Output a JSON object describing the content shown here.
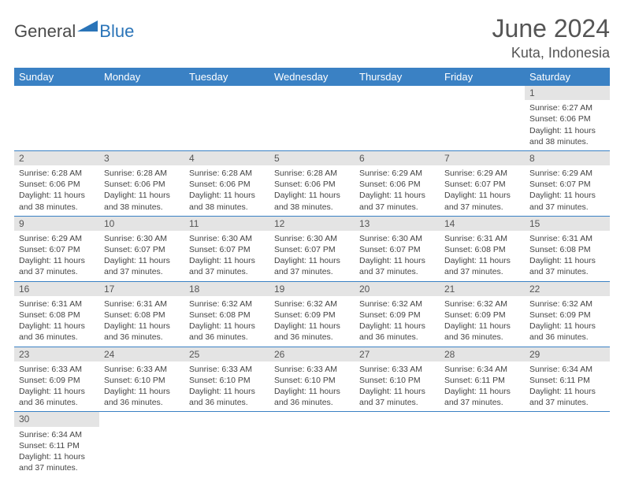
{
  "logo": {
    "word1": "General",
    "word2": "Blue",
    "color1": "#4a4a4a",
    "color2": "#2a74b8"
  },
  "title": "June 2024",
  "location": "Kuta, Indonesia",
  "colors": {
    "header_bg": "#3a81c4",
    "header_text": "#ffffff",
    "daynum_bg": "#e4e4e4",
    "rule": "#3a81c4",
    "text": "#444444",
    "page_bg": "#ffffff"
  },
  "typography": {
    "title_fontsize": 32,
    "location_fontsize": 18,
    "dayheader_fontsize": 13,
    "cell_fontsize": 10.5
  },
  "day_headers": [
    "Sunday",
    "Monday",
    "Tuesday",
    "Wednesday",
    "Thursday",
    "Friday",
    "Saturday"
  ],
  "weeks": [
    [
      null,
      null,
      null,
      null,
      null,
      null,
      {
        "n": "1",
        "sunrise": "6:27 AM",
        "sunset": "6:06 PM",
        "daylight": "11 hours and 38 minutes."
      }
    ],
    [
      {
        "n": "2",
        "sunrise": "6:28 AM",
        "sunset": "6:06 PM",
        "daylight": "11 hours and 38 minutes."
      },
      {
        "n": "3",
        "sunrise": "6:28 AM",
        "sunset": "6:06 PM",
        "daylight": "11 hours and 38 minutes."
      },
      {
        "n": "4",
        "sunrise": "6:28 AM",
        "sunset": "6:06 PM",
        "daylight": "11 hours and 38 minutes."
      },
      {
        "n": "5",
        "sunrise": "6:28 AM",
        "sunset": "6:06 PM",
        "daylight": "11 hours and 38 minutes."
      },
      {
        "n": "6",
        "sunrise": "6:29 AM",
        "sunset": "6:06 PM",
        "daylight": "11 hours and 37 minutes."
      },
      {
        "n": "7",
        "sunrise": "6:29 AM",
        "sunset": "6:07 PM",
        "daylight": "11 hours and 37 minutes."
      },
      {
        "n": "8",
        "sunrise": "6:29 AM",
        "sunset": "6:07 PM",
        "daylight": "11 hours and 37 minutes."
      }
    ],
    [
      {
        "n": "9",
        "sunrise": "6:29 AM",
        "sunset": "6:07 PM",
        "daylight": "11 hours and 37 minutes."
      },
      {
        "n": "10",
        "sunrise": "6:30 AM",
        "sunset": "6:07 PM",
        "daylight": "11 hours and 37 minutes."
      },
      {
        "n": "11",
        "sunrise": "6:30 AM",
        "sunset": "6:07 PM",
        "daylight": "11 hours and 37 minutes."
      },
      {
        "n": "12",
        "sunrise": "6:30 AM",
        "sunset": "6:07 PM",
        "daylight": "11 hours and 37 minutes."
      },
      {
        "n": "13",
        "sunrise": "6:30 AM",
        "sunset": "6:07 PM",
        "daylight": "11 hours and 37 minutes."
      },
      {
        "n": "14",
        "sunrise": "6:31 AM",
        "sunset": "6:08 PM",
        "daylight": "11 hours and 37 minutes."
      },
      {
        "n": "15",
        "sunrise": "6:31 AM",
        "sunset": "6:08 PM",
        "daylight": "11 hours and 37 minutes."
      }
    ],
    [
      {
        "n": "16",
        "sunrise": "6:31 AM",
        "sunset": "6:08 PM",
        "daylight": "11 hours and 36 minutes."
      },
      {
        "n": "17",
        "sunrise": "6:31 AM",
        "sunset": "6:08 PM",
        "daylight": "11 hours and 36 minutes."
      },
      {
        "n": "18",
        "sunrise": "6:32 AM",
        "sunset": "6:08 PM",
        "daylight": "11 hours and 36 minutes."
      },
      {
        "n": "19",
        "sunrise": "6:32 AM",
        "sunset": "6:09 PM",
        "daylight": "11 hours and 36 minutes."
      },
      {
        "n": "20",
        "sunrise": "6:32 AM",
        "sunset": "6:09 PM",
        "daylight": "11 hours and 36 minutes."
      },
      {
        "n": "21",
        "sunrise": "6:32 AM",
        "sunset": "6:09 PM",
        "daylight": "11 hours and 36 minutes."
      },
      {
        "n": "22",
        "sunrise": "6:32 AM",
        "sunset": "6:09 PM",
        "daylight": "11 hours and 36 minutes."
      }
    ],
    [
      {
        "n": "23",
        "sunrise": "6:33 AM",
        "sunset": "6:09 PM",
        "daylight": "11 hours and 36 minutes."
      },
      {
        "n": "24",
        "sunrise": "6:33 AM",
        "sunset": "6:10 PM",
        "daylight": "11 hours and 36 minutes."
      },
      {
        "n": "25",
        "sunrise": "6:33 AM",
        "sunset": "6:10 PM",
        "daylight": "11 hours and 36 minutes."
      },
      {
        "n": "26",
        "sunrise": "6:33 AM",
        "sunset": "6:10 PM",
        "daylight": "11 hours and 36 minutes."
      },
      {
        "n": "27",
        "sunrise": "6:33 AM",
        "sunset": "6:10 PM",
        "daylight": "11 hours and 37 minutes."
      },
      {
        "n": "28",
        "sunrise": "6:34 AM",
        "sunset": "6:11 PM",
        "daylight": "11 hours and 37 minutes."
      },
      {
        "n": "29",
        "sunrise": "6:34 AM",
        "sunset": "6:11 PM",
        "daylight": "11 hours and 37 minutes."
      }
    ],
    [
      {
        "n": "30",
        "sunrise": "6:34 AM",
        "sunset": "6:11 PM",
        "daylight": "11 hours and 37 minutes."
      },
      null,
      null,
      null,
      null,
      null,
      null
    ]
  ],
  "labels": {
    "sunrise": "Sunrise:",
    "sunset": "Sunset:",
    "daylight": "Daylight:"
  }
}
